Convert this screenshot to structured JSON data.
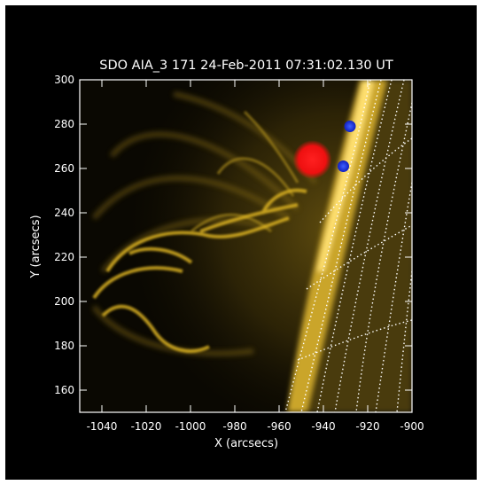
{
  "title": "SDO AIA_3 171 24-Feb-2011 07:31:02.130 UT",
  "x_axis": {
    "label": "X (arcsecs)",
    "range": [
      -1050,
      -900
    ],
    "ticks": [
      "-1040",
      "-1020",
      "-1000",
      "-980",
      "-960",
      "-940",
      "-920",
      "-900"
    ],
    "tick_values": [
      -1040,
      -1020,
      -1000,
      -980,
      -960,
      -940,
      -920,
      -900
    ]
  },
  "y_axis": {
    "label": "Y (arcsecs)",
    "range": [
      150,
      300
    ],
    "ticks": [
      "160",
      "180",
      "200",
      "220",
      "240",
      "260",
      "280",
      "300"
    ],
    "tick_values": [
      160,
      180,
      200,
      220,
      240,
      260,
      280,
      300
    ]
  },
  "colors": {
    "background": "#000000",
    "emission": "#c9a11a",
    "flare_marker": "#ff1a1a",
    "point_marker": "#2040ff",
    "grid_lines": "#ffffff"
  },
  "markers": {
    "flare": {
      "x": -945,
      "y": 264
    },
    "points": [
      {
        "x": -928,
        "y": 279
      },
      {
        "x": -931,
        "y": 261
      }
    ]
  }
}
